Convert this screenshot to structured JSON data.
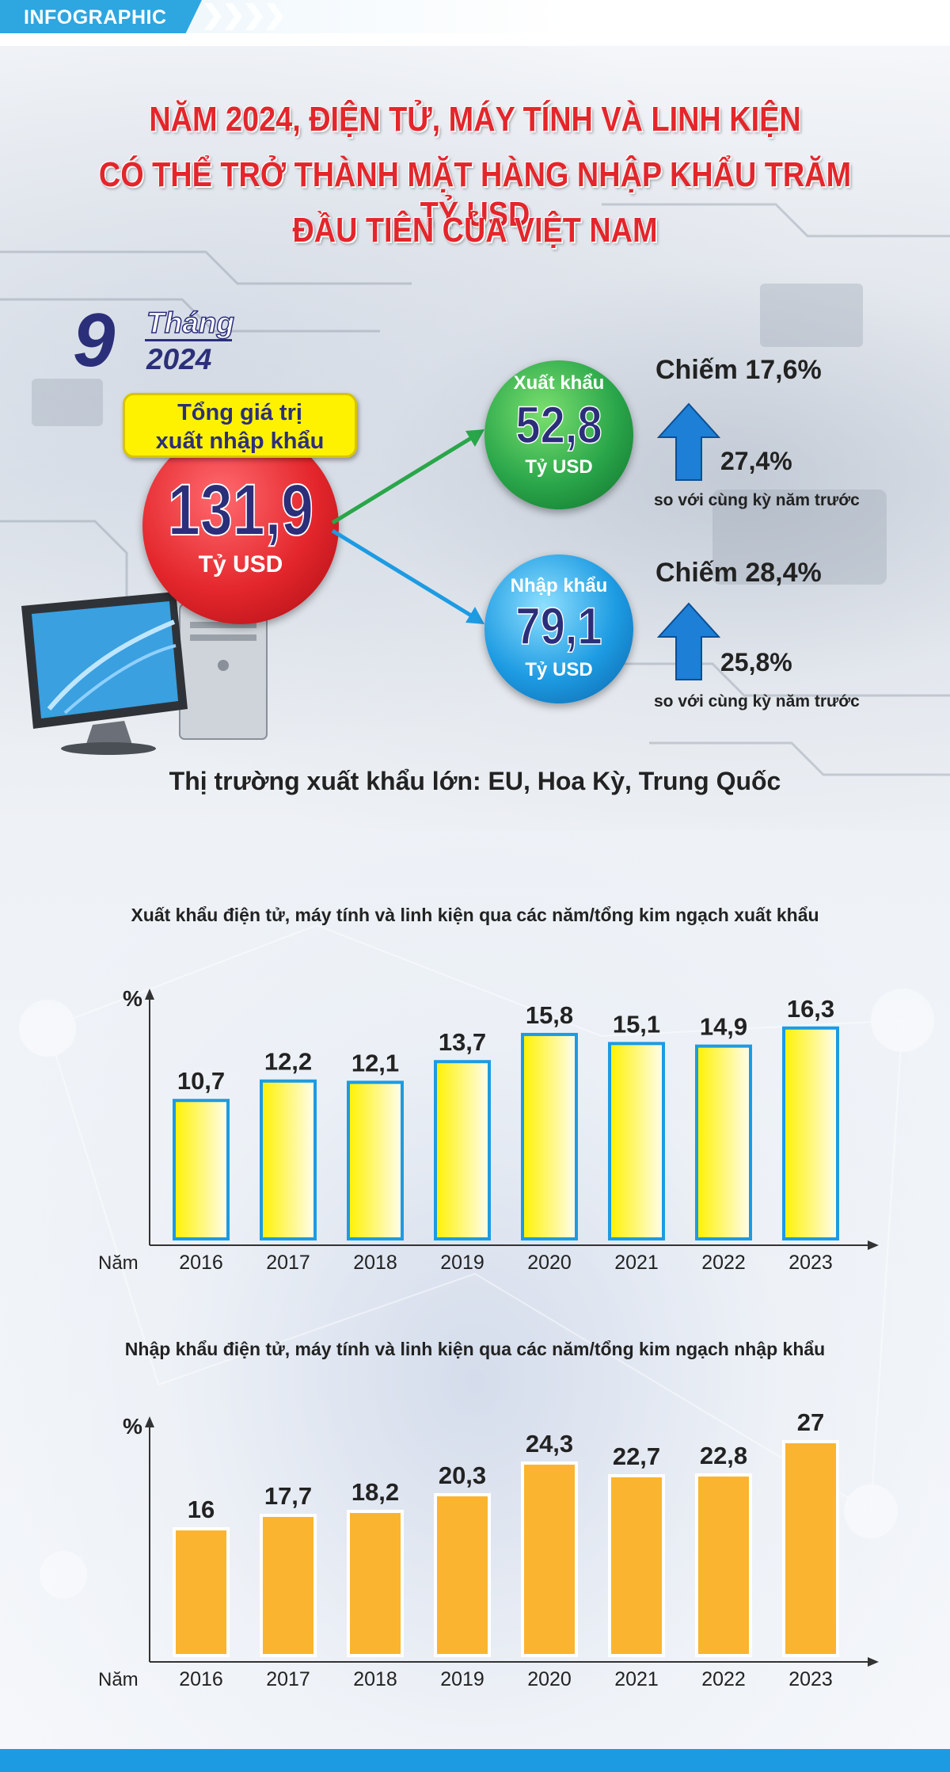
{
  "header": {
    "tag": "INFOGRAPHIC"
  },
  "title": {
    "line1": "NĂM 2024, ĐIỆN TỬ, MÁY TÍNH VÀ LINH KIỆN",
    "line2": "CÓ THỂ TRỞ THÀNH MẶT HÀNG NHẬP KHẨU TRĂM TỶ USD",
    "line3": "ĐẦU TIÊN CỦA VIỆT NAM"
  },
  "period": {
    "number": "9",
    "month_label": "Tháng",
    "year": "2024"
  },
  "total": {
    "label_line1": "Tổng giá trị",
    "label_line2": "xuất nhập khẩu",
    "value": "131,9",
    "unit": "Tỷ USD"
  },
  "export": {
    "label": "Xuất khẩu",
    "value": "52,8",
    "unit": "Tỷ USD",
    "share": "Chiếm 17,6%",
    "growth": "27,4%",
    "compare": "so với cùng kỳ năm trước"
  },
  "import": {
    "label": "Nhập khẩu",
    "value": "79,1",
    "unit": "Tỷ USD",
    "share": "Chiếm 28,4%",
    "growth": "25,8%",
    "compare": "so với cùng kỳ năm trước"
  },
  "market": "Thị trường xuất khẩu lớn: EU, Hoa Kỳ, Trung Quốc",
  "colors": {
    "red": "#e3262b",
    "navy": "#2b2f7a",
    "green": "#2aa64a",
    "blue": "#1d9be2",
    "yellow": "#fff200",
    "orange": "#fbb430"
  },
  "chart_data": [
    {
      "type": "bar",
      "title": "Xuất khẩu điện tử, máy tính và linh kiện qua các năm/tổng kim ngạch xuất khẩu",
      "xlabel": "Năm",
      "ylabel": "%",
      "categories": [
        "2016",
        "2017",
        "2018",
        "2019",
        "2020",
        "2021",
        "2022",
        "2023"
      ],
      "values": [
        10.7,
        12.2,
        12.1,
        13.7,
        15.8,
        15.1,
        14.9,
        16.3
      ],
      "labels": [
        "10,7",
        "12,2",
        "12,1",
        "13,7",
        "15,8",
        "15,1",
        "14,9",
        "16,3"
      ],
      "color": "#fff200",
      "ylim": [
        0,
        18
      ]
    },
    {
      "type": "bar",
      "title": "Nhập khẩu điện tử, máy tính và linh kiện qua các năm/tổng kim ngạch nhập khẩu",
      "xlabel": "Năm",
      "ylabel": "%",
      "categories": [
        "2016",
        "2017",
        "2018",
        "2019",
        "2020",
        "2021",
        "2022",
        "2023"
      ],
      "values": [
        16,
        17.7,
        18.2,
        20.3,
        24.3,
        22.7,
        22.8,
        27
      ],
      "labels": [
        "16",
        "17,7",
        "18,2",
        "20,3",
        "24,3",
        "22,7",
        "22,8",
        "27"
      ],
      "color": "#fbb430",
      "ylim": [
        0,
        28
      ]
    }
  ]
}
